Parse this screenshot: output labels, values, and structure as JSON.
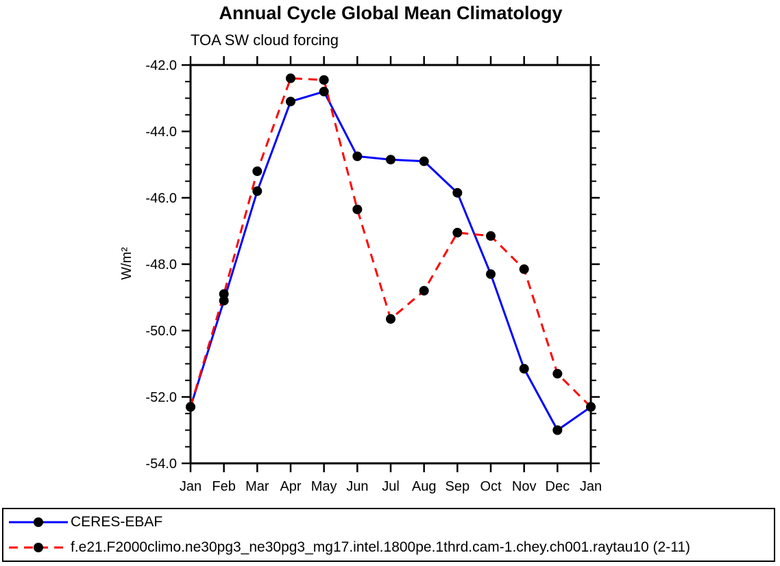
{
  "chart_data": {
    "type": "line",
    "title": "Annual Cycle Global Mean Climatology",
    "subtitle": "TOA SW cloud forcing",
    "ylabel": "W/m²",
    "x_categories": [
      "Jan",
      "Feb",
      "Mar",
      "Apr",
      "May",
      "Jun",
      "Jul",
      "Aug",
      "Sep",
      "Oct",
      "Nov",
      "Dec",
      "Jan"
    ],
    "ylim": [
      -54.0,
      -42.0
    ],
    "ytick_major_interval": 2.0,
    "ytick_minor_interval": 0.5,
    "ytick_labels": [
      "-42.0",
      "-44.0",
      "-46.0",
      "-48.0",
      "-50.0",
      "-52.0",
      "-54.0"
    ],
    "grid": false,
    "legend_position": "bottom",
    "marker": {
      "shape": "filled-circle",
      "color": "#000000",
      "radius": 7
    },
    "series": [
      {
        "name": "CERES-EBAF",
        "color": "#0000ff",
        "line_style": "solid",
        "values": [
          -52.3,
          -49.1,
          -45.8,
          -43.1,
          -42.8,
          -44.75,
          -44.85,
          -44.9,
          -45.85,
          -48.3,
          -51.15,
          -53.0,
          -52.3
        ]
      },
      {
        "name": "f.e21.F2000climo.ne30pg3_ne30pg3_mg17.intel.1800pe.1thrd.cam-1.chey.ch001.raytau10 (2-11)",
        "color": "#ff0000",
        "line_style": "dashed",
        "values": [
          -52.3,
          -48.9,
          -45.2,
          -42.4,
          -42.45,
          -46.35,
          -49.65,
          -48.8,
          -47.05,
          -47.15,
          -48.15,
          -51.3,
          -52.3
        ]
      }
    ]
  }
}
